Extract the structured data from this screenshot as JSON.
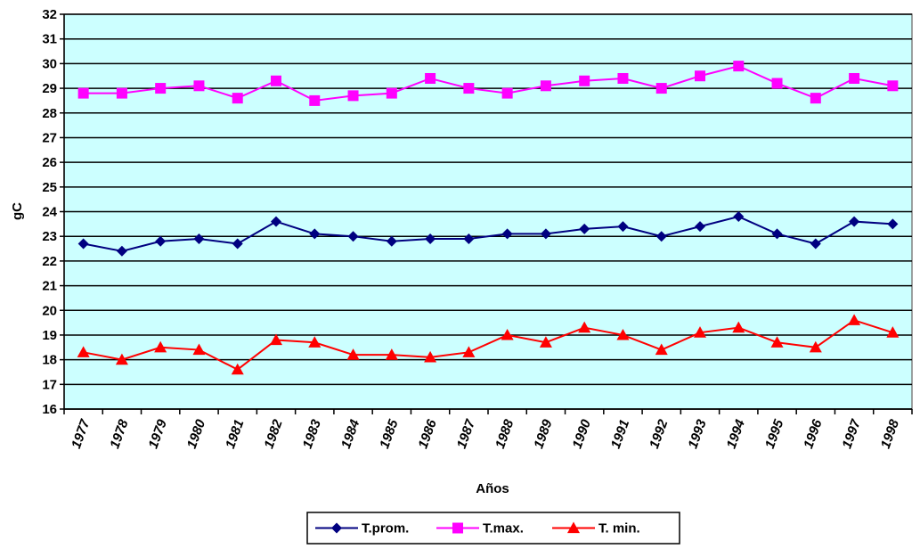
{
  "chart_data": {
    "type": "line",
    "title": "",
    "xlabel": "Años",
    "ylabel": "gC",
    "ylim": [
      16,
      32
    ],
    "yticks": [
      16,
      17,
      18,
      19,
      20,
      21,
      22,
      23,
      24,
      25,
      26,
      27,
      28,
      29,
      30,
      31,
      32
    ],
    "grid": true,
    "legend_position": "bottom",
    "background_color": "#ccffff",
    "categories": [
      "1977",
      "1978",
      "1979",
      "1980",
      "1981",
      "1982",
      "1983",
      "1984",
      "1985",
      "1986",
      "1987",
      "1988",
      "1989",
      "1990",
      "1991",
      "1992",
      "1993",
      "1994",
      "1995",
      "1996",
      "1997",
      "1998"
    ],
    "series": [
      {
        "name": "T.prom.",
        "color": "#000080",
        "marker": "diamond",
        "values": [
          22.7,
          22.4,
          22.8,
          22.9,
          22.7,
          23.6,
          23.1,
          23.0,
          22.8,
          22.9,
          22.9,
          23.1,
          23.1,
          23.3,
          23.4,
          23.0,
          23.4,
          23.8,
          23.1,
          22.7,
          23.6,
          23.5
        ]
      },
      {
        "name": "T.max.",
        "color": "#ff00ff",
        "marker": "square",
        "values": [
          28.8,
          28.8,
          29.0,
          29.1,
          28.6,
          29.3,
          28.5,
          28.7,
          28.8,
          29.4,
          29.0,
          28.8,
          29.1,
          29.3,
          29.4,
          29.0,
          29.5,
          29.9,
          29.2,
          28.6,
          29.4,
          29.1
        ]
      },
      {
        "name": "T. min.",
        "color": "#ff0000",
        "marker": "triangle",
        "values": [
          18.3,
          18.0,
          18.5,
          18.4,
          17.6,
          18.8,
          18.7,
          18.2,
          18.2,
          18.1,
          18.3,
          19.0,
          18.7,
          19.3,
          19.0,
          18.4,
          19.1,
          19.3,
          18.7,
          18.5,
          19.6,
          19.1
        ]
      }
    ]
  }
}
